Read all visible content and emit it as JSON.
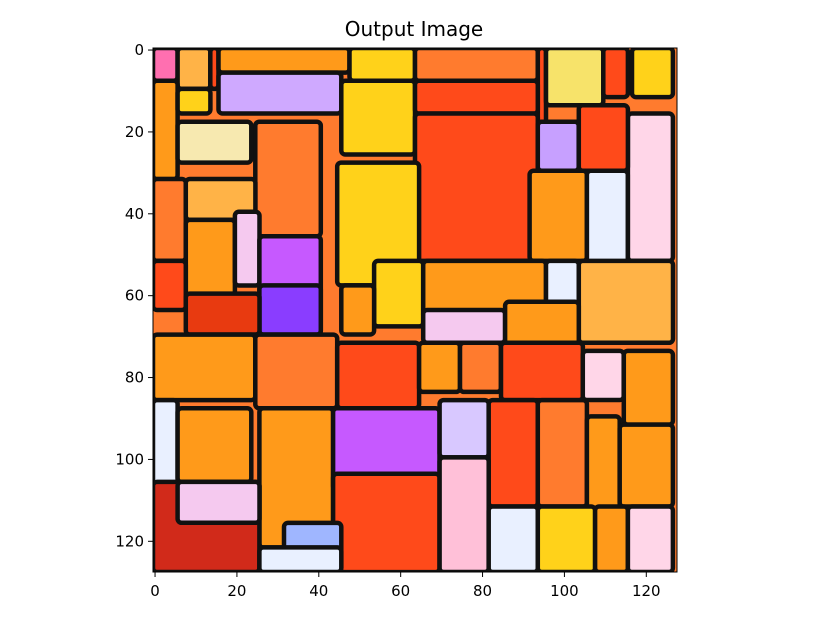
{
  "figure": {
    "title": "Output Image"
  },
  "axes": {
    "xlim": [
      0,
      127
    ],
    "ylim": [
      127,
      0
    ],
    "x_ticks": [
      0,
      20,
      40,
      60,
      80,
      100,
      120
    ],
    "y_ticks": [
      0,
      20,
      40,
      60,
      80,
      100,
      120
    ],
    "x_tick_labels": [
      "0",
      "20",
      "40",
      "60",
      "80",
      "100",
      "120"
    ],
    "y_tick_labels": [
      "0",
      "20",
      "40",
      "60",
      "80",
      "100",
      "120"
    ]
  },
  "image": {
    "description_colors": {
      "outline": "#111111",
      "palette": [
        "#ff9a1a",
        "#ff4a1a",
        "#ffd21a",
        "#e83a10",
        "#f5c9ef",
        "#c659ff",
        "#ff66cc",
        "#ffb347",
        "#f7e36a",
        "#ff7b2e",
        "#e9f0ff",
        "#d12a1a"
      ]
    }
  }
}
